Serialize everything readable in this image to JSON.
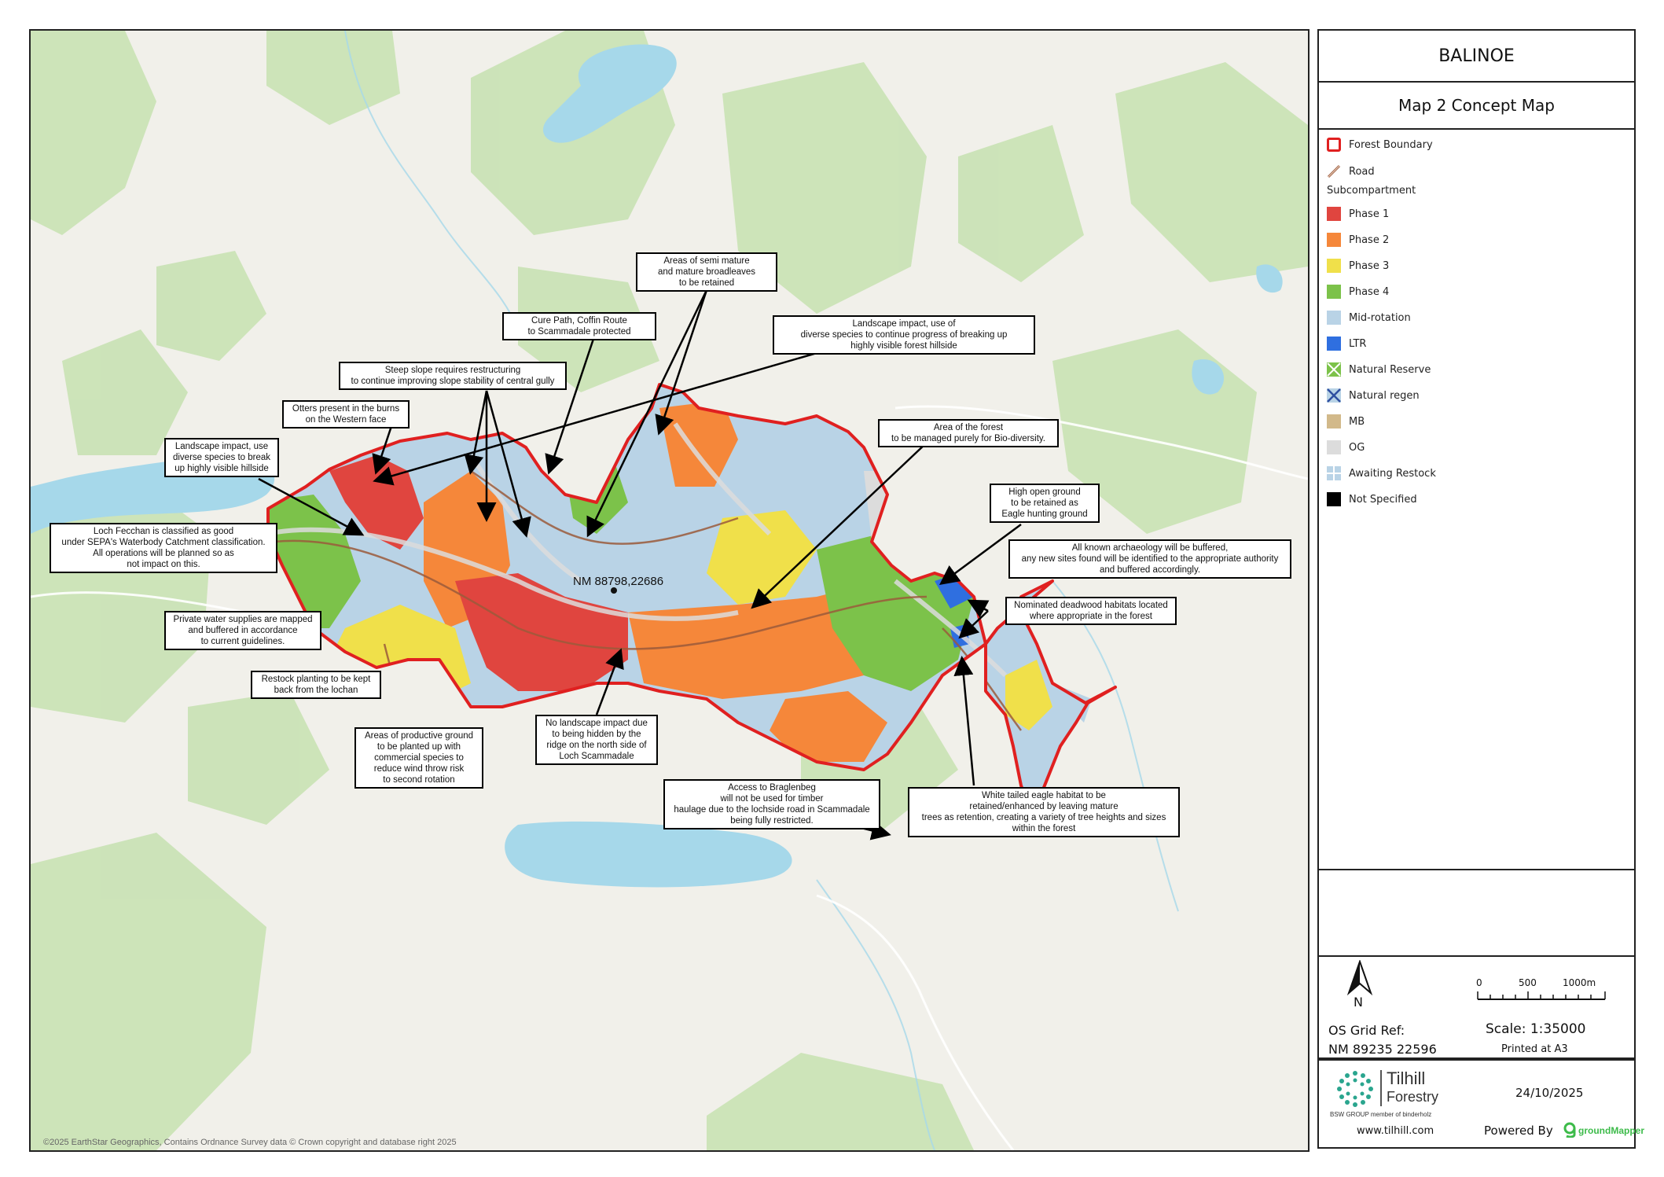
{
  "panel": {
    "title": "BALINOE",
    "subtitle": "Map 2 Concept Map"
  },
  "legend": {
    "heading": "Subcompartment",
    "items": [
      {
        "key": "forest-boundary",
        "label": "Forest Boundary",
        "color": "#e02020",
        "style": "outline"
      },
      {
        "key": "road",
        "label": "Road",
        "color": "#9b5b3b",
        "style": "road"
      },
      {
        "key": "phase-1",
        "label": "Phase 1",
        "color": "#e0453f",
        "style": "fill"
      },
      {
        "key": "phase-2",
        "label": "Phase 2",
        "color": "#f5873a",
        "style": "fill"
      },
      {
        "key": "phase-3",
        "label": "Phase 3",
        "color": "#f0e04a",
        "style": "fill"
      },
      {
        "key": "phase-4",
        "label": "Phase 4",
        "color": "#7cc24a",
        "style": "fill"
      },
      {
        "key": "mid-rotation",
        "label": "Mid-rotation",
        "color": "#b9d3e6",
        "style": "fill"
      },
      {
        "key": "ltr",
        "label": "LTR",
        "color": "#2f6fe0",
        "style": "fill"
      },
      {
        "key": "natural-reserve",
        "label": "Natural Reserve",
        "color": "#7cc24a",
        "style": "cross"
      },
      {
        "key": "natural-regen",
        "label": "Natural regen",
        "color": "#4a6fd0",
        "style": "cross"
      },
      {
        "key": "mb",
        "label": "MB",
        "color": "#d2b98a",
        "style": "fill"
      },
      {
        "key": "og",
        "label": "OG",
        "color": "#dcdcdc",
        "style": "fill"
      },
      {
        "key": "awaiting-restock",
        "label": "Awaiting Restock",
        "color": "#b9d3e6",
        "style": "grid"
      },
      {
        "key": "not-specified",
        "label": "Not Specified",
        "color": "#000000",
        "style": "fill"
      }
    ]
  },
  "callouts": [
    {
      "key": "semi-mature",
      "text": "Areas of semi mature\nand mature broadleaves\nto be retained"
    },
    {
      "key": "cure-path",
      "text": "Cure Path, Coffin Route\nto Scammadale protected"
    },
    {
      "key": "landscape-diverse",
      "text": "Landscape impact, use of\ndiverse species to continue progress of breaking up\nhighly visible forest hillside"
    },
    {
      "key": "steep-slope",
      "text": "Steep slope requires restructuring\nto continue improving slope stability of central gully"
    },
    {
      "key": "otters",
      "text": "Otters present in the burns\non the Western face"
    },
    {
      "key": "landscape-hillside",
      "text": "Landscape impact, use\ndiverse species to break\nup highly visible hillside"
    },
    {
      "key": "bio-diversity",
      "text": "Area of the forest\nto be managed purely for Bio-diversity."
    },
    {
      "key": "high-open",
      "text": "High open ground\nto be retained as\nEagle hunting ground"
    },
    {
      "key": "loch-fecchan",
      "text": "Loch Fecchan is classified as good\nunder SEPA's Waterbody Catchment classification.\nAll operations will be planned so as\nnot impact on this."
    },
    {
      "key": "archaeology",
      "text": "All known archaeology will be buffered,\nany new sites found will be identified to the appropriate authority\nand buffered accordingly."
    },
    {
      "key": "deadwood",
      "text": "Nominated deadwood habitats located\nwhere appropriate in the forest"
    },
    {
      "key": "water-supplies",
      "text": "Private water supplies are mapped\nand buffered in accordance\nto current guidelines."
    },
    {
      "key": "restock-lochan",
      "text": "Restock planting to be kept\nback from the lochan"
    },
    {
      "key": "productive",
      "text": "Areas of productive ground\nto be planted up with\ncommercial species to\nreduce wind throw risk\nto second rotation"
    },
    {
      "key": "no-landscape",
      "text": "No landscape impact due\nto being hidden by the\nridge on the north side of\nLoch Scammadale"
    },
    {
      "key": "braglenbeg",
      "text": "Access to Braglenbeg\nwill not be used for timber\nhaulage due to the lochside road in Scammadale\nbeing fully restricted."
    },
    {
      "key": "eagle-habitat",
      "text": "White tailed eagle habitat to be\nretained/enhanced by leaving mature\ntrees as retention, creating a variety of tree heights and sizes\nwithin the forest"
    }
  ],
  "map": {
    "centre_label": "NM 88798,22686",
    "copyright": "©2025 EarthStar Geographics, Contains Ordnance Survey data © Crown copyright and database right 2025",
    "colors": {
      "water": "#a6d8ea",
      "woodland": "#c5e0b0",
      "land": "#f1f0ea",
      "boundary": "#e02020"
    }
  },
  "info": {
    "north": "N",
    "grid_ref_label": "OS Grid Ref:",
    "grid_ref_value": "NM 89235 22596",
    "scale_ticks": [
      "0",
      "500",
      "1000m"
    ],
    "scale": "Scale: 1:35000",
    "printed": "Printed at A3",
    "date": "24/10/2025",
    "company_name": "Tilhill",
    "company_sub": "Forestry",
    "company_group": "BSW GROUP member of binderholz",
    "website": "www.tilhill.com",
    "powered_by": "Powered By",
    "powered_brand": "groundMapper"
  }
}
